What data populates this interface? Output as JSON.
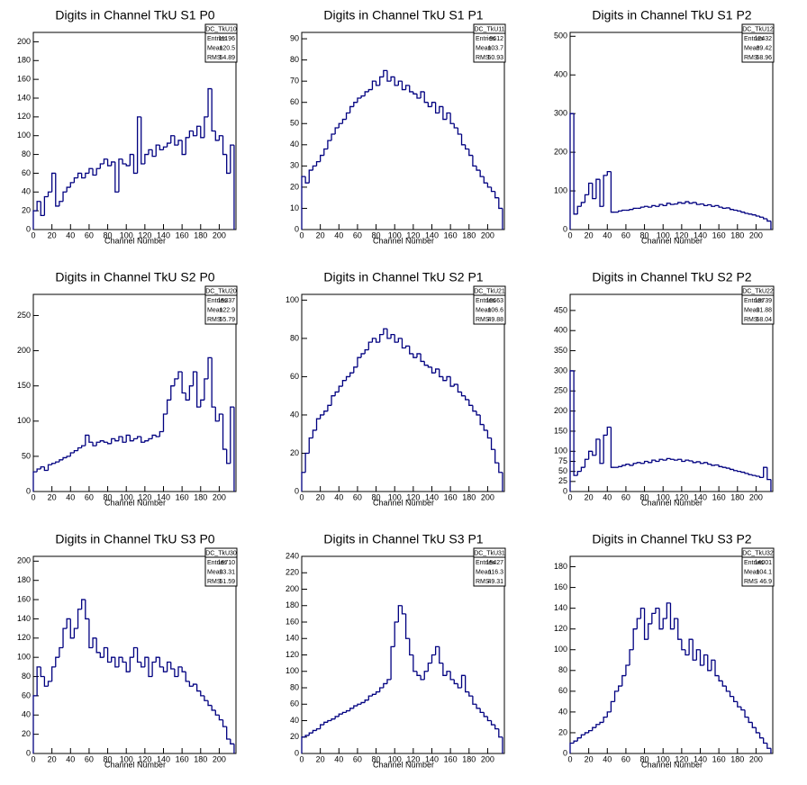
{
  "chart_data": [
    {
      "type": "histogram",
      "title": "Digits in Channel TkU S1 P0",
      "xlabel": "Channel Number",
      "color": "#000080",
      "xlim": [
        0,
        218
      ],
      "ylim": [
        0,
        210
      ],
      "xticks": [
        0,
        20,
        40,
        60,
        80,
        100,
        120,
        140,
        160,
        180,
        200
      ],
      "yticks": [
        0,
        20,
        40,
        60,
        80,
        100,
        120,
        140,
        160,
        180,
        200
      ],
      "bins": [
        0,
        4,
        8,
        12,
        16,
        20,
        24,
        28,
        32,
        36,
        40,
        44,
        48,
        52,
        56,
        60,
        64,
        68,
        72,
        76,
        80,
        84,
        88,
        92,
        96,
        100,
        104,
        108,
        112,
        116,
        120,
        124,
        128,
        132,
        136,
        140,
        144,
        148,
        152,
        156,
        160,
        164,
        168,
        172,
        176,
        180,
        184,
        188,
        192,
        196,
        200,
        204,
        208,
        212,
        216
      ],
      "values": [
        20,
        30,
        15,
        35,
        40,
        60,
        25,
        30,
        40,
        45,
        50,
        55,
        60,
        55,
        60,
        65,
        58,
        65,
        70,
        75,
        68,
        72,
        40,
        75,
        70,
        68,
        80,
        60,
        120,
        70,
        80,
        85,
        78,
        90,
        85,
        88,
        92,
        100,
        90,
        95,
        80,
        98,
        105,
        100,
        110,
        98,
        120,
        150,
        105,
        95,
        100,
        80,
        60,
        90
      ],
      "stats": {
        "name": "DC_TkU10",
        "labels": [
          "Entries",
          "Mean",
          "RMS"
        ],
        "values": [
          11196,
          120.5,
          54.89
        ]
      }
    },
    {
      "type": "histogram",
      "title": "Digits in Channel TkU S1 P1",
      "xlabel": "Channel Number",
      "color": "#000080",
      "xlim": [
        0,
        218
      ],
      "ylim": [
        0,
        93
      ],
      "xticks": [
        0,
        20,
        40,
        60,
        80,
        100,
        120,
        140,
        160,
        180,
        200
      ],
      "yticks": [
        0,
        10,
        20,
        30,
        40,
        50,
        60,
        70,
        80,
        90
      ],
      "bins": [
        0,
        4,
        8,
        12,
        16,
        20,
        24,
        28,
        32,
        36,
        40,
        44,
        48,
        52,
        56,
        60,
        64,
        68,
        72,
        76,
        80,
        84,
        88,
        92,
        96,
        100,
        104,
        108,
        112,
        116,
        120,
        124,
        128,
        132,
        136,
        140,
        144,
        148,
        152,
        156,
        160,
        164,
        168,
        172,
        176,
        180,
        184,
        188,
        192,
        196,
        200,
        204,
        208,
        212,
        216
      ],
      "values": [
        25,
        22,
        28,
        30,
        32,
        35,
        38,
        42,
        45,
        48,
        50,
        52,
        55,
        58,
        60,
        62,
        63,
        65,
        66,
        70,
        68,
        72,
        75,
        70,
        72,
        68,
        70,
        66,
        68,
        65,
        64,
        62,
        65,
        60,
        58,
        60,
        55,
        58,
        52,
        55,
        50,
        48,
        45,
        40,
        38,
        35,
        30,
        28,
        25,
        22,
        20,
        18,
        15,
        10
      ],
      "stats": {
        "name": "DC_TkU11",
        "labels": [
          "Entries",
          "Mean",
          "RMS"
        ],
        "values": [
          9612,
          103.7,
          50.93
        ]
      }
    },
    {
      "type": "histogram",
      "title": "Digits in Channel TkU S1 P2",
      "xlabel": "Channel Number",
      "color": "#000080",
      "xlim": [
        0,
        218
      ],
      "ylim": [
        0,
        510
      ],
      "xticks": [
        0,
        20,
        40,
        60,
        80,
        100,
        120,
        140,
        160,
        180,
        200
      ],
      "yticks": [
        0,
        100,
        200,
        300,
        400,
        500
      ],
      "bins": [
        0,
        4,
        8,
        12,
        16,
        20,
        24,
        28,
        32,
        36,
        40,
        44,
        48,
        52,
        56,
        60,
        64,
        68,
        72,
        76,
        80,
        84,
        88,
        92,
        96,
        100,
        104,
        108,
        112,
        116,
        120,
        124,
        128,
        132,
        136,
        140,
        144,
        148,
        152,
        156,
        160,
        164,
        168,
        172,
        176,
        180,
        184,
        188,
        192,
        196,
        200,
        204,
        208,
        212,
        216
      ],
      "values": [
        300,
        40,
        60,
        70,
        90,
        120,
        80,
        130,
        60,
        140,
        150,
        45,
        45,
        48,
        50,
        50,
        52,
        55,
        55,
        58,
        60,
        58,
        62,
        60,
        65,
        62,
        68,
        65,
        66,
        70,
        68,
        72,
        68,
        70,
        65,
        66,
        62,
        64,
        60,
        62,
        58,
        55,
        56,
        52,
        50,
        48,
        45,
        42,
        40,
        38,
        35,
        32,
        28,
        22
      ],
      "stats": {
        "name": "DC_TkU12",
        "labels": [
          "Entries",
          "Mean",
          "RMS"
        ],
        "values": [
          12432,
          89.42,
          58.96
        ]
      }
    },
    {
      "type": "histogram",
      "title": "Digits in Channel TkU S2 P0",
      "xlabel": "Channel Number",
      "color": "#000080",
      "xlim": [
        0,
        218
      ],
      "ylim": [
        0,
        280
      ],
      "xticks": [
        0,
        20,
        40,
        60,
        80,
        100,
        120,
        140,
        160,
        180,
        200
      ],
      "yticks": [
        0,
        50,
        100,
        150,
        200,
        250
      ],
      "bins": [
        0,
        4,
        8,
        12,
        16,
        20,
        24,
        28,
        32,
        36,
        40,
        44,
        48,
        52,
        56,
        60,
        64,
        68,
        72,
        76,
        80,
        84,
        88,
        92,
        96,
        100,
        104,
        108,
        112,
        116,
        120,
        124,
        128,
        132,
        136,
        140,
        144,
        148,
        152,
        156,
        160,
        164,
        168,
        172,
        176,
        180,
        184,
        188,
        192,
        196,
        200,
        204,
        208,
        212,
        216
      ],
      "values": [
        28,
        32,
        35,
        30,
        38,
        40,
        42,
        45,
        48,
        50,
        55,
        58,
        62,
        65,
        80,
        70,
        65,
        70,
        72,
        70,
        68,
        75,
        72,
        78,
        70,
        80,
        72,
        75,
        78,
        70,
        72,
        75,
        80,
        78,
        85,
        110,
        130,
        150,
        160,
        170,
        140,
        130,
        150,
        170,
        120,
        130,
        160,
        190,
        120,
        100,
        110,
        60,
        40,
        120
      ],
      "stats": {
        "name": "DC_TkU20",
        "labels": [
          "Entries",
          "Mean",
          "RMS"
        ],
        "values": [
          15337,
          122.9,
          55.79
        ]
      }
    },
    {
      "type": "histogram",
      "title": "Digits in Channel TkU S2 P1",
      "xlabel": "Channel Number",
      "color": "#000080",
      "xlim": [
        0,
        218
      ],
      "ylim": [
        0,
        103
      ],
      "xticks": [
        0,
        20,
        40,
        60,
        80,
        100,
        120,
        140,
        160,
        180,
        200
      ],
      "yticks": [
        0,
        20,
        40,
        60,
        80,
        100
      ],
      "bins": [
        0,
        4,
        8,
        12,
        16,
        20,
        24,
        28,
        32,
        36,
        40,
        44,
        48,
        52,
        56,
        60,
        64,
        68,
        72,
        76,
        80,
        84,
        88,
        92,
        96,
        100,
        104,
        108,
        112,
        116,
        120,
        124,
        128,
        132,
        136,
        140,
        144,
        148,
        152,
        156,
        160,
        164,
        168,
        172,
        176,
        180,
        184,
        188,
        192,
        196,
        200,
        204,
        208,
        212,
        216
      ],
      "values": [
        10,
        20,
        28,
        32,
        38,
        40,
        42,
        45,
        50,
        52,
        55,
        58,
        60,
        62,
        65,
        70,
        72,
        74,
        78,
        80,
        78,
        82,
        85,
        80,
        82,
        78,
        80,
        75,
        76,
        72,
        70,
        72,
        68,
        66,
        65,
        62,
        64,
        60,
        58,
        60,
        55,
        56,
        52,
        50,
        48,
        45,
        42,
        40,
        35,
        32,
        28,
        22,
        15,
        10
      ],
      "stats": {
        "name": "DC_TkU21",
        "labels": [
          "Entries",
          "Mean",
          "RMS"
        ],
        "values": [
          10663,
          106.6,
          49.88
        ]
      }
    },
    {
      "type": "histogram",
      "title": "Digits in Channel TkU S2 P2",
      "xlabel": "Channel Number",
      "color": "#000080",
      "xlim": [
        0,
        218
      ],
      "ylim": [
        0,
        490
      ],
      "xticks": [
        0,
        20,
        40,
        60,
        80,
        100,
        120,
        140,
        160,
        180,
        200
      ],
      "yticks": [
        0,
        25,
        50,
        75,
        100,
        150,
        200,
        250,
        300,
        350,
        400,
        450
      ],
      "bins": [
        0,
        4,
        8,
        12,
        16,
        20,
        24,
        28,
        32,
        36,
        40,
        44,
        48,
        52,
        56,
        60,
        64,
        68,
        72,
        76,
        80,
        84,
        88,
        92,
        96,
        100,
        104,
        108,
        112,
        116,
        120,
        124,
        128,
        132,
        136,
        140,
        144,
        148,
        152,
        156,
        160,
        164,
        168,
        172,
        176,
        180,
        184,
        188,
        192,
        196,
        200,
        204,
        208,
        212,
        216
      ],
      "values": [
        300,
        40,
        50,
        60,
        80,
        100,
        90,
        130,
        70,
        140,
        160,
        60,
        60,
        62,
        65,
        68,
        65,
        70,
        72,
        70,
        75,
        72,
        78,
        75,
        80,
        78,
        82,
        80,
        78,
        80,
        75,
        78,
        76,
        72,
        74,
        70,
        72,
        68,
        65,
        66,
        62,
        60,
        58,
        55,
        52,
        50,
        48,
        45,
        42,
        40,
        38,
        35,
        60,
        30
      ],
      "stats": {
        "name": "DC_TkU22",
        "labels": [
          "Entries",
          "Mean",
          "RMS"
        ],
        "values": [
          13739,
          91.88,
          58.04
        ]
      }
    },
    {
      "type": "histogram",
      "title": "Digits in Channel TkU S3 P0",
      "xlabel": "Channel Number",
      "color": "#000080",
      "xlim": [
        0,
        218
      ],
      "ylim": [
        0,
        205
      ],
      "xticks": [
        0,
        20,
        40,
        60,
        80,
        100,
        120,
        140,
        160,
        180,
        200
      ],
      "yticks": [
        0,
        20,
        40,
        60,
        80,
        100,
        120,
        140,
        160,
        180,
        200
      ],
      "bins": [
        0,
        4,
        8,
        12,
        16,
        20,
        24,
        28,
        32,
        36,
        40,
        44,
        48,
        52,
        56,
        60,
        64,
        68,
        72,
        76,
        80,
        84,
        88,
        92,
        96,
        100,
        104,
        108,
        112,
        116,
        120,
        124,
        128,
        132,
        136,
        140,
        144,
        148,
        152,
        156,
        160,
        164,
        168,
        172,
        176,
        180,
        184,
        188,
        192,
        196,
        200,
        204,
        208,
        212,
        216
      ],
      "values": [
        60,
        90,
        80,
        70,
        75,
        90,
        100,
        110,
        130,
        140,
        120,
        130,
        150,
        160,
        140,
        110,
        120,
        105,
        100,
        110,
        95,
        100,
        90,
        100,
        95,
        85,
        100,
        110,
        95,
        90,
        100,
        80,
        95,
        100,
        90,
        85,
        95,
        88,
        80,
        90,
        85,
        75,
        70,
        72,
        65,
        60,
        55,
        50,
        45,
        40,
        35,
        28,
        15,
        10
      ],
      "stats": {
        "name": "DC_TkU30",
        "labels": [
          "Entries",
          "Mean",
          "RMS"
        ],
        "values": [
          16710,
          93.31,
          51.59
        ]
      }
    },
    {
      "type": "histogram",
      "title": "Digits in Channel TkU S3 P1",
      "xlabel": "Channel Number",
      "color": "#000080",
      "xlim": [
        0,
        218
      ],
      "ylim": [
        0,
        240
      ],
      "xticks": [
        0,
        20,
        40,
        60,
        80,
        100,
        120,
        140,
        160,
        180,
        200
      ],
      "yticks": [
        0,
        20,
        40,
        60,
        80,
        100,
        120,
        140,
        160,
        180,
        200,
        220,
        240
      ],
      "bins": [
        0,
        4,
        8,
        12,
        16,
        20,
        24,
        28,
        32,
        36,
        40,
        44,
        48,
        52,
        56,
        60,
        64,
        68,
        72,
        76,
        80,
        84,
        88,
        92,
        96,
        100,
        104,
        108,
        112,
        116,
        120,
        124,
        128,
        132,
        136,
        140,
        144,
        148,
        152,
        156,
        160,
        164,
        168,
        172,
        176,
        180,
        184,
        188,
        192,
        196,
        200,
        204,
        208,
        212,
        216
      ],
      "values": [
        20,
        22,
        25,
        28,
        30,
        35,
        38,
        40,
        42,
        45,
        48,
        50,
        52,
        55,
        58,
        60,
        62,
        65,
        70,
        72,
        75,
        80,
        85,
        90,
        130,
        160,
        180,
        170,
        140,
        120,
        100,
        95,
        90,
        100,
        110,
        120,
        130,
        110,
        95,
        100,
        90,
        85,
        80,
        95,
        75,
        70,
        60,
        55,
        50,
        45,
        40,
        35,
        30,
        20
      ],
      "stats": {
        "name": "DC_TkU31",
        "labels": [
          "Entries",
          "Mean",
          "RMS"
        ],
        "values": [
          15427,
          116.3,
          49.31
        ]
      }
    },
    {
      "type": "histogram",
      "title": "Digits in Channel TkU S3 P2",
      "xlabel": "Channel Number",
      "color": "#000080",
      "xlim": [
        0,
        218
      ],
      "ylim": [
        0,
        190
      ],
      "xticks": [
        0,
        20,
        40,
        60,
        80,
        100,
        120,
        140,
        160,
        180,
        200
      ],
      "yticks": [
        0,
        20,
        40,
        60,
        80,
        100,
        120,
        140,
        160,
        180
      ],
      "bins": [
        0,
        4,
        8,
        12,
        16,
        20,
        24,
        28,
        32,
        36,
        40,
        44,
        48,
        52,
        56,
        60,
        64,
        68,
        72,
        76,
        80,
        84,
        88,
        92,
        96,
        100,
        104,
        108,
        112,
        116,
        120,
        124,
        128,
        132,
        136,
        140,
        144,
        148,
        152,
        156,
        160,
        164,
        168,
        172,
        176,
        180,
        184,
        188,
        192,
        196,
        200,
        204,
        208,
        212,
        216
      ],
      "values": [
        10,
        12,
        15,
        18,
        20,
        22,
        25,
        28,
        30,
        35,
        40,
        50,
        60,
        65,
        75,
        85,
        100,
        120,
        130,
        140,
        110,
        125,
        135,
        140,
        120,
        130,
        145,
        120,
        130,
        110,
        100,
        95,
        110,
        90,
        100,
        85,
        95,
        80,
        90,
        75,
        70,
        65,
        60,
        55,
        50,
        45,
        42,
        35,
        30,
        25,
        20,
        15,
        10,
        5
      ],
      "stats": {
        "name": "DC_TkU32",
        "labels": [
          "Entries",
          "Mean",
          "RMS"
        ],
        "values": [
          14001,
          104.1,
          46.9
        ]
      }
    }
  ]
}
